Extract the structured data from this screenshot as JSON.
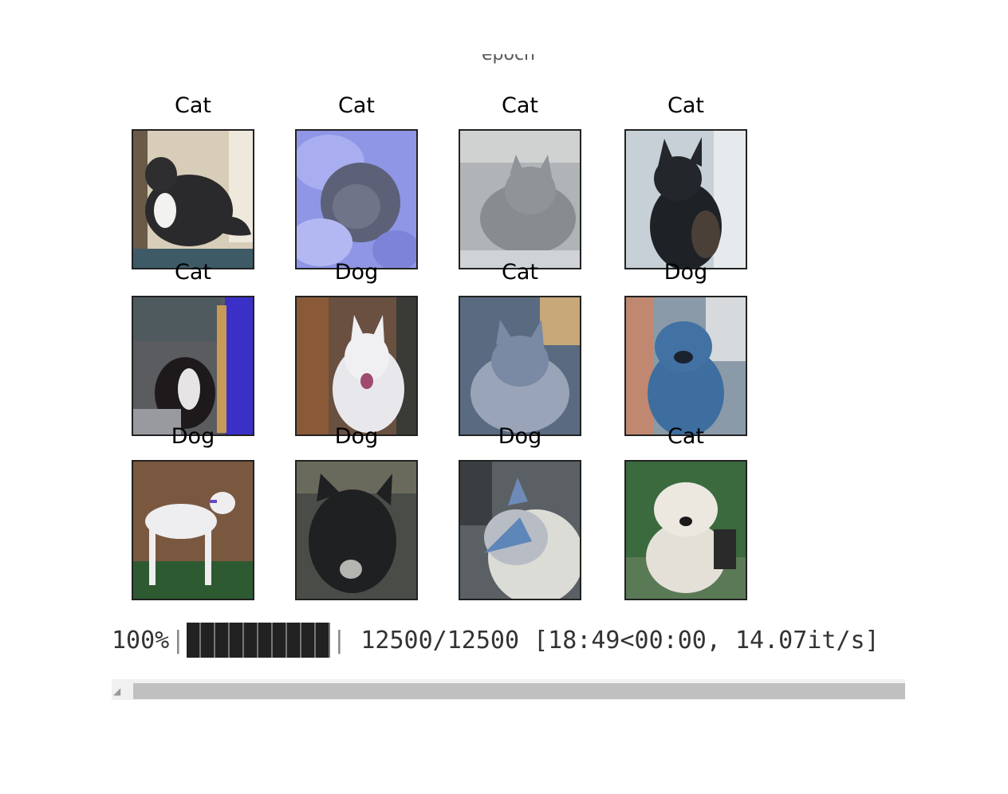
{
  "figure": {
    "axis_label_cropped": "epoch",
    "images": [
      {
        "label": "Cat",
        "icon": "cat-photo-black-white-cat"
      },
      {
        "label": "Cat",
        "icon": "cat-photo-grey-cat-held"
      },
      {
        "label": "Cat",
        "icon": "cat-photo-grey-kitten"
      },
      {
        "label": "Cat",
        "icon": "cat-photo-black-cat"
      },
      {
        "label": "Cat",
        "icon": "cat-photo-tuxedo-kitten"
      },
      {
        "label": "Dog",
        "icon": "dog-photo-white-spitz"
      },
      {
        "label": "Cat",
        "icon": "cat-photo-fluffy-grey-cat"
      },
      {
        "label": "Dog",
        "icon": "dog-photo-blue-tinted-dog"
      },
      {
        "label": "Dog",
        "icon": "dog-photo-white-whippet"
      },
      {
        "label": "Dog",
        "icon": "dog-photo-dark-dog"
      },
      {
        "label": "Dog",
        "icon": "dog-photo-collie"
      },
      {
        "label": "Cat",
        "icon": "dog-photo-white-pitbull"
      }
    ]
  },
  "progress": {
    "percent_text": "100%",
    "fraction": 1.0,
    "stats_text": "12500/12500 [18:49<00:00, 14.07it/s]"
  },
  "colors": {
    "bar_fill": "#222222",
    "scrollbar_thumb": "#c0c0c0"
  }
}
